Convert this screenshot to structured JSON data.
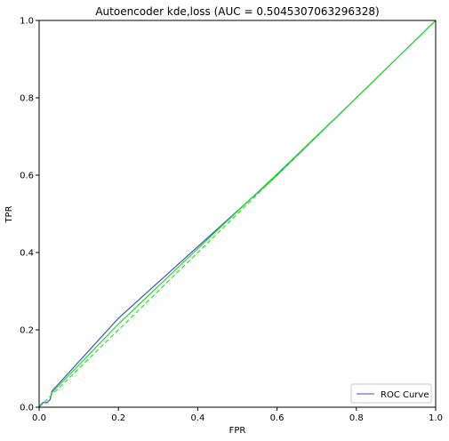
{
  "chart_data": {
    "type": "line",
    "title": "Autoencoder kde,loss (AUC = 0.5045307063296328)",
    "xlabel": "FPR",
    "ylabel": "TPR",
    "xlim": [
      0.0,
      1.0
    ],
    "ylim": [
      0.0,
      1.0
    ],
    "xticks": [
      "0.0",
      "0.2",
      "0.4",
      "0.6",
      "0.8",
      "1.0"
    ],
    "yticks": [
      "0.0",
      "0.2",
      "0.4",
      "0.6",
      "0.8",
      "1.0"
    ],
    "grid": false,
    "legend_position": "lower-right",
    "series": [
      {
        "name": "ROC Curve",
        "color": "#3a52d4",
        "style": "solid",
        "x": [
          0.0,
          0.004,
          0.01,
          0.02,
          0.028,
          0.032,
          0.035,
          0.04,
          0.2,
          0.4,
          0.6,
          0.8,
          1.0
        ],
        "y": [
          0.0,
          0.006,
          0.012,
          0.012,
          0.02,
          0.04,
          0.045,
          0.05,
          0.23,
          0.415,
          0.6,
          0.8,
          1.0
        ]
      },
      {
        "color": "#22ee22",
        "style": "dashed",
        "x": [
          0.0,
          1.0
        ],
        "y": [
          0.0,
          1.0
        ]
      },
      {
        "color": "#22dd22",
        "style": "solid",
        "x": [
          0.03,
          0.2,
          0.4,
          0.6,
          0.8,
          1.0
        ],
        "y": [
          0.035,
          0.215,
          0.41,
          0.603,
          0.8,
          1.0
        ]
      }
    ]
  }
}
